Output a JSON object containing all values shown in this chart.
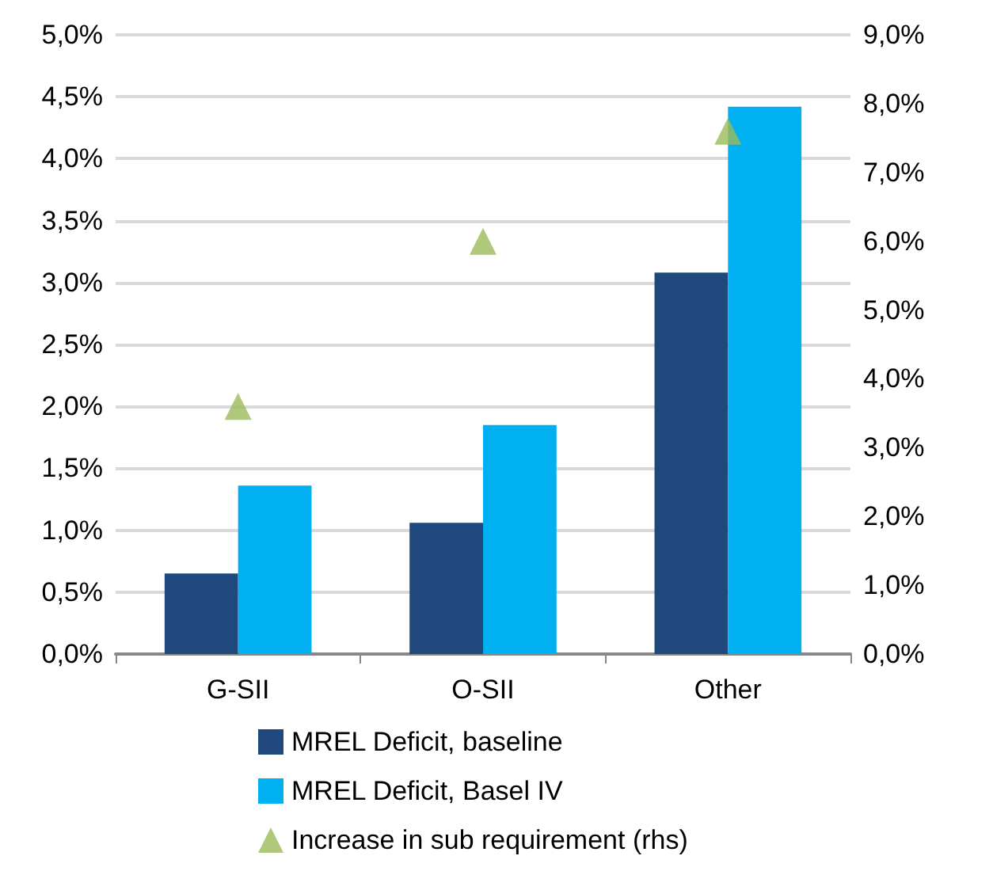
{
  "chart_data": {
    "type": "bar",
    "categories": [
      "G-SII",
      "O-SII",
      "Other"
    ],
    "series": [
      {
        "name": "MREL Deficit, baseline",
        "color": "#1f497d",
        "values": [
          0.65,
          1.06,
          3.08
        ]
      },
      {
        "name": "MREL Deficit, Basel IV",
        "color": "#00b0f0",
        "values": [
          1.36,
          1.85,
          4.42
        ]
      },
      {
        "name": "Increase in sub requirement (rhs)",
        "type": "scatter",
        "axis": "y2",
        "marker": "triangle",
        "color": "#9bbb59",
        "values": [
          3.6,
          6.0,
          7.6
        ]
      }
    ],
    "ylim": [
      0,
      5
    ],
    "yticks": [
      {
        "value": 0,
        "label": "0,0%"
      },
      {
        "value": 0.5,
        "label": "0,5%"
      },
      {
        "value": 1,
        "label": "1,0%"
      },
      {
        "value": 1.5,
        "label": "1,5%"
      },
      {
        "value": 2,
        "label": "2,0%"
      },
      {
        "value": 2.5,
        "label": "2,5%"
      },
      {
        "value": 3,
        "label": "3,0%"
      },
      {
        "value": 3.5,
        "label": "3,5%"
      },
      {
        "value": 4,
        "label": "4,0%"
      },
      {
        "value": 4.5,
        "label": "4,5%"
      },
      {
        "value": 5,
        "label": "5,0%"
      }
    ],
    "y2lim": [
      0,
      9
    ],
    "y2ticks": [
      {
        "value": 0,
        "label": "0,0%"
      },
      {
        "value": 1,
        "label": "1,0%"
      },
      {
        "value": 2,
        "label": "2,0%"
      },
      {
        "value": 3,
        "label": "3,0%"
      },
      {
        "value": 4,
        "label": "4,0%"
      },
      {
        "value": 5,
        "label": "5,0%"
      },
      {
        "value": 6,
        "label": "6,0%"
      },
      {
        "value": 7,
        "label": "7,0%"
      },
      {
        "value": 8,
        "label": "8,0%"
      },
      {
        "value": 9,
        "label": "9,0%"
      }
    ],
    "grid": "y",
    "legend": "bottom"
  }
}
